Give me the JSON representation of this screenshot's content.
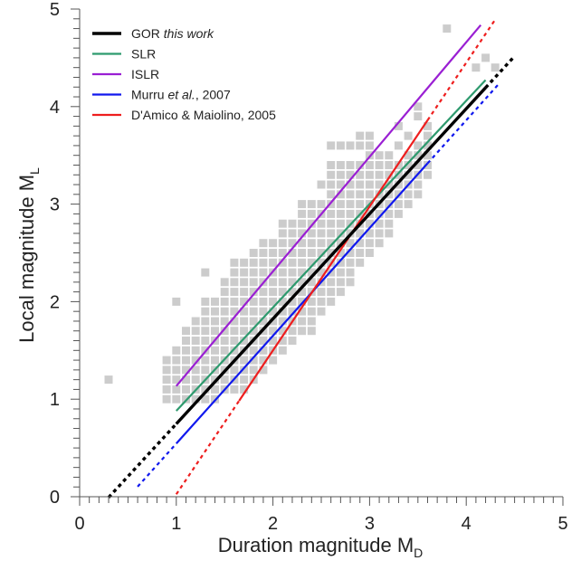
{
  "chart_data": {
    "type": "scatter",
    "xlabel": "Duration magnitude M",
    "xlabel_sub": "D",
    "ylabel": "Local magnitude M",
    "ylabel_sub": "L",
    "xlim": [
      0,
      5
    ],
    "ylim": [
      0,
      5
    ],
    "x_ticks": [
      "0",
      "1",
      "2",
      "3",
      "4",
      "5"
    ],
    "y_ticks": [
      "0",
      "1",
      "2",
      "3",
      "4",
      "5"
    ],
    "grid": false,
    "legend_position": "top-left",
    "scatter_color": "#cccccc",
    "scatter_points": [
      [
        0.3,
        1.2
      ],
      [
        1.0,
        2.0
      ],
      [
        1.3,
        2.3
      ],
      [
        2.5,
        3.2
      ],
      [
        3.8,
        4.8
      ],
      [
        4.3,
        4.4
      ],
      [
        4.2,
        4.5
      ],
      [
        4.1,
        4.4
      ],
      [
        3.5,
        3.9
      ],
      [
        3.5,
        4.0
      ],
      [
        3.3,
        3.6
      ],
      [
        2.6,
        3.6
      ],
      [
        2.7,
        3.6
      ],
      [
        2.8,
        3.6
      ],
      [
        2.9,
        3.6
      ],
      [
        3.0,
        3.6
      ],
      [
        2.9,
        3.7
      ],
      [
        3.0,
        3.7
      ],
      [
        3.1,
        3.5
      ],
      [
        3.2,
        3.5
      ],
      [
        3.6,
        3.8
      ],
      [
        3.4,
        3.7
      ],
      [
        3.3,
        3.8
      ]
    ],
    "cloud_columns": [
      {
        "x": 0.9,
        "y_min": 1.0,
        "y_max": 1.4
      },
      {
        "x": 1.0,
        "y_min": 1.0,
        "y_max": 1.5
      },
      {
        "x": 1.1,
        "y_min": 1.0,
        "y_max": 1.7
      },
      {
        "x": 1.2,
        "y_min": 1.0,
        "y_max": 1.8
      },
      {
        "x": 1.3,
        "y_min": 1.0,
        "y_max": 2.0
      },
      {
        "x": 1.4,
        "y_min": 1.0,
        "y_max": 2.0
      },
      {
        "x": 1.5,
        "y_min": 1.1,
        "y_max": 2.2
      },
      {
        "x": 1.6,
        "y_min": 1.1,
        "y_max": 2.4
      },
      {
        "x": 1.7,
        "y_min": 1.1,
        "y_max": 2.4
      },
      {
        "x": 1.8,
        "y_min": 1.2,
        "y_max": 2.5
      },
      {
        "x": 1.9,
        "y_min": 1.3,
        "y_max": 2.6
      },
      {
        "x": 2.0,
        "y_min": 1.4,
        "y_max": 2.6
      },
      {
        "x": 2.1,
        "y_min": 1.5,
        "y_max": 2.8
      },
      {
        "x": 2.2,
        "y_min": 1.6,
        "y_max": 2.8
      },
      {
        "x": 2.3,
        "y_min": 1.7,
        "y_max": 3.0
      },
      {
        "x": 2.4,
        "y_min": 1.7,
        "y_max": 3.0
      },
      {
        "x": 2.5,
        "y_min": 1.9,
        "y_max": 3.0
      },
      {
        "x": 2.6,
        "y_min": 2.0,
        "y_max": 3.4
      },
      {
        "x": 2.7,
        "y_min": 2.1,
        "y_max": 3.4
      },
      {
        "x": 2.8,
        "y_min": 2.2,
        "y_max": 3.4
      },
      {
        "x": 2.9,
        "y_min": 2.4,
        "y_max": 3.4
      },
      {
        "x": 3.0,
        "y_min": 2.5,
        "y_max": 3.5
      },
      {
        "x": 3.1,
        "y_min": 2.6,
        "y_max": 3.4
      },
      {
        "x": 3.2,
        "y_min": 2.7,
        "y_max": 3.4
      },
      {
        "x": 3.3,
        "y_min": 2.9,
        "y_max": 3.4
      },
      {
        "x": 3.4,
        "y_min": 3.0,
        "y_max": 3.5
      },
      {
        "x": 3.5,
        "y_min": 3.1,
        "y_max": 3.6
      },
      {
        "x": 3.6,
        "y_min": 3.3,
        "y_max": 3.7
      }
    ],
    "series": [
      {
        "name": "GOR ",
        "name_italic": "this work",
        "color": "#000000",
        "width": 3.4,
        "solid": [
          1.0,
          4.2
        ],
        "dashed": [
          [
            0.3,
            1.0
          ],
          [
            4.2,
            4.5
          ]
        ],
        "slope": 1.077,
        "intercept": -0.33
      },
      {
        "name": "SLR",
        "color": "#2e9a6e",
        "width": 2.2,
        "solid": [
          1.0,
          4.2
        ],
        "dashed": [],
        "slope": 1.06,
        "intercept": -0.18
      },
      {
        "name": "ISLR",
        "color": "#9a1fd3",
        "width": 2.2,
        "solid": [
          1.0,
          4.15
        ],
        "dashed": [],
        "slope": 1.175,
        "intercept": -0.04
      },
      {
        "name": "Murru ",
        "name_italic": "et al.",
        "name_suffix": ", 2007",
        "color": "#1018ee",
        "width": 2.2,
        "solid": [
          1.0,
          3.6
        ],
        "dashed": [
          [
            0.6,
            1.0
          ],
          [
            3.6,
            4.35
          ]
        ],
        "slope": 1.105,
        "intercept": -0.56
      },
      {
        "name": "D'Amico & Maiolino, 2005",
        "color": "#ee1e1e",
        "width": 2.2,
        "solid": [
          1.65,
          3.6
        ],
        "dashed": [
          [
            1.0,
            1.65
          ],
          [
            3.6,
            4.3
          ]
        ],
        "slope": 1.475,
        "intercept": -1.45
      }
    ]
  }
}
